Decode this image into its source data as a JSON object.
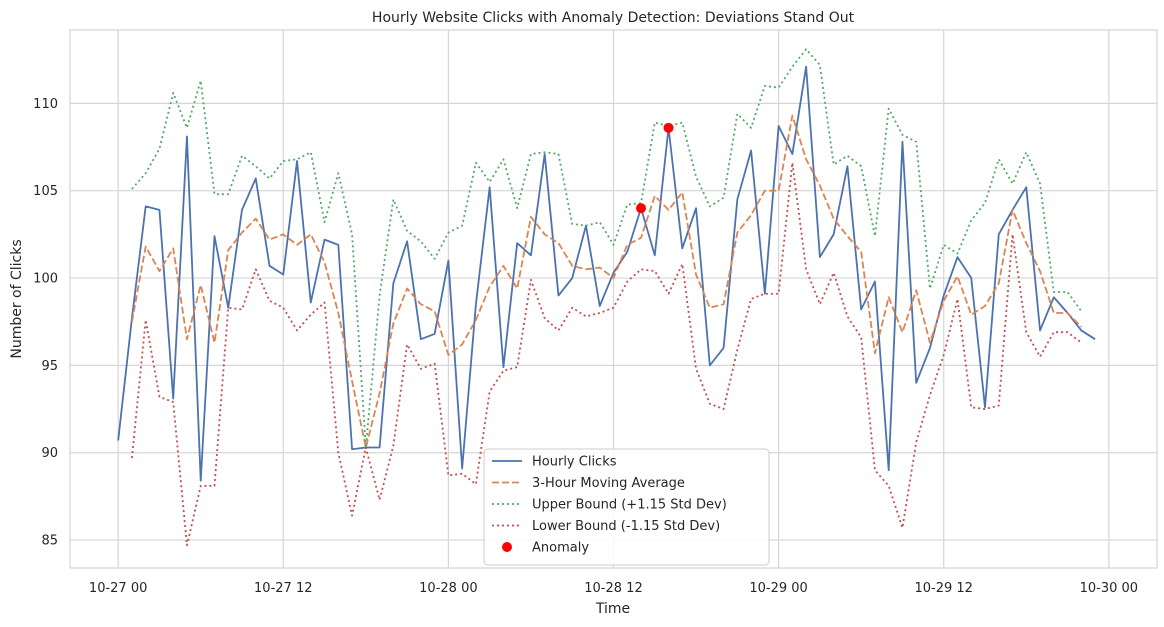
{
  "chart_data": {
    "type": "line",
    "title": "Hourly Website Clicks with Anomaly Detection: Deviations Stand Out",
    "xlabel": "Time",
    "ylabel": "Number of Clicks",
    "x_start": "2023-10-27 00:00",
    "x_step_hours": 1,
    "xlim_hours": [
      -3.5,
      75.5
    ],
    "ylim": [
      83.4,
      114.2
    ],
    "x_ticks": [
      {
        "hour": 0,
        "label": "10-27 00"
      },
      {
        "hour": 12,
        "label": "10-27 12"
      },
      {
        "hour": 24,
        "label": "10-28 00"
      },
      {
        "hour": 36,
        "label": "10-28 12"
      },
      {
        "hour": 48,
        "label": "10-29 00"
      },
      {
        "hour": 60,
        "label": "10-29 12"
      },
      {
        "hour": 72,
        "label": "10-30 00"
      }
    ],
    "y_ticks": [
      85,
      90,
      95,
      100,
      105,
      110
    ],
    "grid": true,
    "legend_position": "bottom-center",
    "series": [
      {
        "name": "Hourly Clicks",
        "color": "#4c72b0",
        "style": "solid",
        "start_hour": 0,
        "values": [
          90.7,
          97.7,
          104.1,
          103.9,
          93.1,
          108.1,
          88.4,
          102.4,
          98.3,
          103.9,
          105.7,
          100.7,
          100.2,
          106.7,
          98.6,
          102.2,
          101.9,
          90.2,
          90.3,
          90.3,
          99.7,
          102.1,
          96.5,
          96.8,
          101.0,
          89.1,
          98.5,
          105.2,
          94.9,
          102.0,
          101.3,
          107.1,
          99.0,
          100.0,
          103.0,
          98.4,
          100.3,
          101.5,
          104.0,
          101.3,
          108.6,
          101.7,
          104.0,
          95.0,
          96.0,
          104.5,
          107.3,
          99.1,
          108.7,
          107.1,
          112.1,
          101.2,
          102.5,
          106.4,
          98.2,
          99.8,
          89.0,
          107.8,
          94.0,
          96.0,
          99.0,
          101.2,
          100.0,
          92.6,
          102.5,
          103.9,
          105.2,
          97.0,
          98.9,
          98.0,
          97.0,
          96.5
        ]
      },
      {
        "name": "3-Hour Moving Average",
        "color": "#dd8452",
        "style": "dashed",
        "start_hour": 1,
        "values": [
          97.5,
          101.8,
          100.4,
          101.7,
          96.5,
          99.6,
          96.3,
          101.6,
          102.6,
          103.4,
          102.2,
          102.5,
          101.9,
          102.5,
          100.9,
          98.0,
          94.1,
          90.3,
          93.4,
          97.4,
          99.4,
          98.5,
          98.1,
          95.6,
          96.2,
          97.6,
          99.5,
          100.7,
          99.4,
          103.5,
          102.5,
          102.0,
          100.7,
          100.5,
          100.6,
          100.0,
          101.9,
          102.3,
          104.7,
          103.9,
          104.9,
          100.2,
          98.3,
          98.5,
          102.6,
          103.6,
          105.0,
          105.0,
          109.3,
          106.8,
          105.3,
          103.4,
          102.4,
          101.5,
          95.7,
          98.9,
          96.9,
          99.3,
          96.3,
          98.7,
          100.1,
          97.9,
          98.4,
          99.7,
          103.9,
          102.0,
          100.4,
          98.0,
          98.0,
          97.2
        ]
      },
      {
        "name": "Upper Bound (+1.15 Std Dev)",
        "color": "#55a868",
        "style": "dotted",
        "start_hour": 1,
        "values": [
          105.1,
          106.0,
          107.4,
          110.6,
          108.6,
          111.3,
          104.8,
          104.8,
          107.0,
          106.4,
          105.7,
          106.7,
          106.8,
          107.2,
          103.2,
          106.0,
          102.5,
          90.3,
          99.0,
          104.5,
          102.7,
          102.1,
          101.1,
          102.6,
          103.0,
          106.6,
          105.5,
          106.8,
          104.0,
          107.1,
          107.2,
          107.1,
          103.1,
          103.0,
          103.2,
          101.9,
          104.2,
          104.3,
          108.9,
          108.7,
          108.9,
          105.8,
          104.1,
          104.6,
          109.4,
          108.6,
          111.0,
          110.9,
          112.1,
          113.1,
          112.2,
          106.5,
          107.0,
          106.4,
          102.4,
          109.7,
          108.2,
          107.8,
          99.4,
          101.9,
          101.4,
          103.3,
          104.3,
          106.8,
          105.4,
          107.2,
          105.4,
          99.2,
          99.2,
          98.1
        ]
      },
      {
        "name": "Lower Bound (-1.15 Std Dev)",
        "color": "#c44e52",
        "style": "dotted",
        "start_hour": 1,
        "values": [
          89.7,
          97.6,
          93.2,
          92.9,
          84.7,
          88.1,
          88.1,
          98.3,
          98.2,
          100.5,
          98.7,
          98.3,
          97.0,
          97.9,
          98.6,
          90.0,
          86.4,
          90.3,
          87.3,
          90.4,
          96.2,
          94.8,
          95.1,
          88.7,
          88.8,
          88.2,
          93.5,
          94.7,
          94.9,
          99.9,
          97.7,
          97.0,
          98.3,
          97.8,
          98.0,
          98.3,
          99.8,
          100.5,
          100.4,
          99.1,
          100.8,
          94.8,
          92.8,
          92.5,
          95.9,
          98.8,
          99.1,
          99.1,
          106.6,
          100.5,
          98.5,
          100.3,
          97.8,
          96.6,
          89.0,
          88.1,
          85.7,
          90.6,
          93.3,
          95.6,
          98.8,
          92.6,
          92.5,
          92.7,
          102.5,
          96.9,
          95.5,
          96.9,
          96.9,
          96.3
        ]
      }
    ],
    "anomalies": {
      "name": "Anomaly",
      "color": "#ff0000",
      "points": [
        {
          "hour": 38,
          "value": 104.0
        },
        {
          "hour": 40,
          "value": 108.6
        }
      ]
    }
  }
}
